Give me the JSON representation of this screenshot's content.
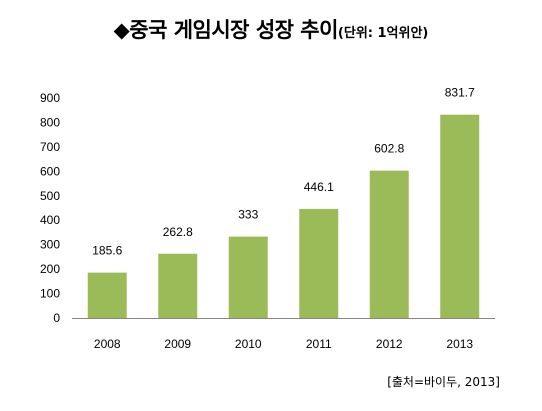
{
  "title": "◆중국 게임시장 성장 추이",
  "unit_note": "(단위: 1억위안)",
  "source": "[출처=바이두, 2013]",
  "colors": {
    "bar": "#9BBB59",
    "axis": "#868686"
  },
  "chart_data": {
    "type": "bar",
    "title": "◆중국 게임시장 성장 추이",
    "subtitle": "(단위: 1억위안)",
    "xlabel": "",
    "ylabel": "",
    "categories": [
      "2008",
      "2009",
      "2010",
      "2011",
      "2012",
      "2013"
    ],
    "series": [
      {
        "values": [
          185.6,
          262.8,
          333,
          446.1,
          602.8,
          831.7
        ],
        "labels": [
          "185.6",
          "262.8",
          "333",
          "446.1",
          "602.8",
          "831.7"
        ]
      }
    ],
    "ylim": [
      0,
      900
    ],
    "yticks": [
      0,
      100,
      200,
      300,
      400,
      500,
      600,
      700,
      800,
      900
    ],
    "grid": false,
    "legend": "none"
  }
}
